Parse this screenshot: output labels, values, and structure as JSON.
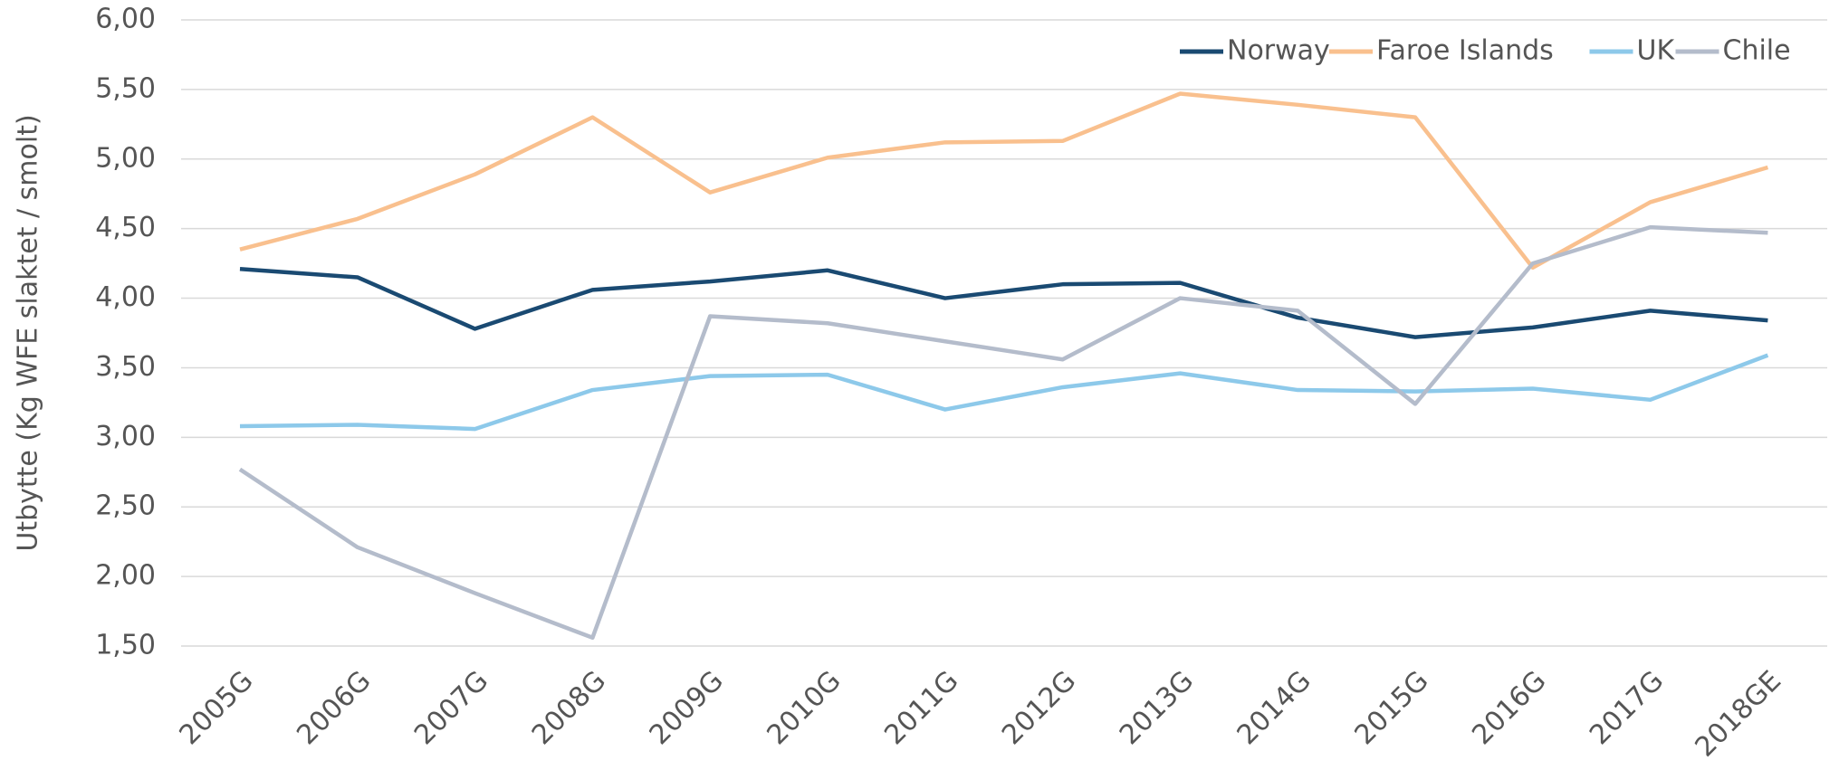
{
  "chart_data": {
    "type": "line",
    "y_label": "Utbytte (Kg WFE slaktet / smolt)",
    "categories": [
      "2005G",
      "2006G",
      "2007G",
      "2008G",
      "2009G",
      "2010G",
      "2011G",
      "2012G",
      "2013G",
      "2014G",
      "2015G",
      "2016G",
      "2017G",
      "2018GE"
    ],
    "series": [
      {
        "name": "Norway",
        "color": "#1a4a72",
        "values": [
          4.21,
          4.15,
          3.78,
          4.06,
          4.12,
          4.2,
          4.0,
          4.1,
          4.11,
          3.86,
          3.72,
          3.79,
          3.91,
          3.84
        ]
      },
      {
        "name": "Faroe Islands",
        "color": "#f9c08e",
        "values": [
          4.35,
          4.57,
          4.89,
          5.3,
          4.76,
          5.01,
          5.12,
          5.13,
          5.47,
          5.39,
          5.3,
          4.22,
          4.69,
          4.94
        ]
      },
      {
        "name": "UK",
        "color": "#8dc9ea",
        "values": [
          3.08,
          3.09,
          3.06,
          3.34,
          3.44,
          3.45,
          3.2,
          3.36,
          3.46,
          3.34,
          3.33,
          3.35,
          3.27,
          3.59
        ]
      },
      {
        "name": "Chile",
        "color": "#b4bccb",
        "values": [
          2.77,
          2.21,
          1.88,
          1.56,
          3.87,
          3.82,
          3.69,
          3.56,
          4.0,
          3.91,
          3.24,
          4.25,
          4.51,
          4.47
        ]
      }
    ],
    "ylim": [
      1.5,
      6
    ],
    "yticks": [
      {
        "value": 1.5,
        "label": "1,50"
      },
      {
        "value": 2,
        "label": "2,00"
      },
      {
        "value": 2.5,
        "label": "2,50"
      },
      {
        "value": 3,
        "label": "3,00"
      },
      {
        "value": 3.5,
        "label": "3,50"
      },
      {
        "value": 4,
        "label": "4,00"
      },
      {
        "value": 4.5,
        "label": "4,50"
      },
      {
        "value": 5,
        "label": "5,00"
      },
      {
        "value": 5.5,
        "label": "5,50"
      },
      {
        "value": 6,
        "label": "6,00"
      }
    ],
    "grid": true,
    "legend": "top-right"
  }
}
